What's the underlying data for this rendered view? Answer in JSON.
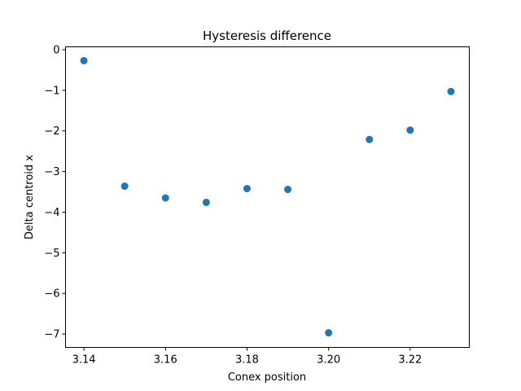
{
  "chart_data": {
    "type": "scatter",
    "title": "Hysteresis difference",
    "xlabel": "Conex position",
    "ylabel": "Delta centroid x",
    "xlim": [
      3.1355,
      3.2345
    ],
    "ylim": [
      -7.33,
      0.07
    ],
    "xticks": [
      3.14,
      3.16,
      3.18,
      3.2,
      3.22
    ],
    "xtick_labels": [
      "3.14",
      "3.16",
      "3.18",
      "3.20",
      "3.22"
    ],
    "yticks": [
      0,
      -1,
      -2,
      -3,
      -4,
      -5,
      -6,
      -7
    ],
    "ytick_labels": [
      "0",
      "−1",
      "−2",
      "−3",
      "−4",
      "−5",
      "−6",
      "−7"
    ],
    "grid": false,
    "marker_color": "#1f77b4",
    "points": [
      {
        "x": 3.14,
        "y": -0.27
      },
      {
        "x": 3.15,
        "y": -3.36
      },
      {
        "x": 3.16,
        "y": -3.65
      },
      {
        "x": 3.17,
        "y": -3.76
      },
      {
        "x": 3.18,
        "y": -3.42
      },
      {
        "x": 3.19,
        "y": -3.44
      },
      {
        "x": 3.2,
        "y": -6.97
      },
      {
        "x": 3.21,
        "y": -2.21
      },
      {
        "x": 3.22,
        "y": -1.98
      },
      {
        "x": 3.23,
        "y": -1.03
      }
    ]
  }
}
